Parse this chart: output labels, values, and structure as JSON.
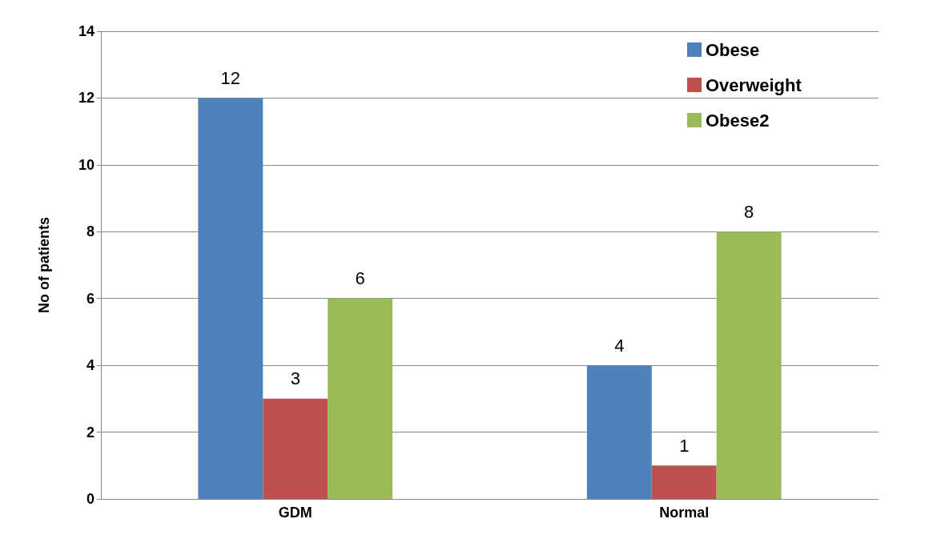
{
  "chart_data": {
    "type": "bar",
    "ylabel": "No of patients",
    "categories": [
      "GDM",
      "Normal"
    ],
    "series": [
      {
        "name": "Obese",
        "color": "#4f81bd",
        "values": [
          12,
          4
        ]
      },
      {
        "name": "Overweight",
        "color": "#c0504d",
        "values": [
          3,
          1
        ]
      },
      {
        "name": "Obese2",
        "color": "#9bbb59",
        "values": [
          6,
          8
        ]
      }
    ],
    "ylim": [
      0,
      14
    ],
    "yticks": [
      0,
      2,
      4,
      6,
      8,
      10,
      12,
      14
    ],
    "grid": "y",
    "legend": "top right",
    "data_labels": true
  }
}
